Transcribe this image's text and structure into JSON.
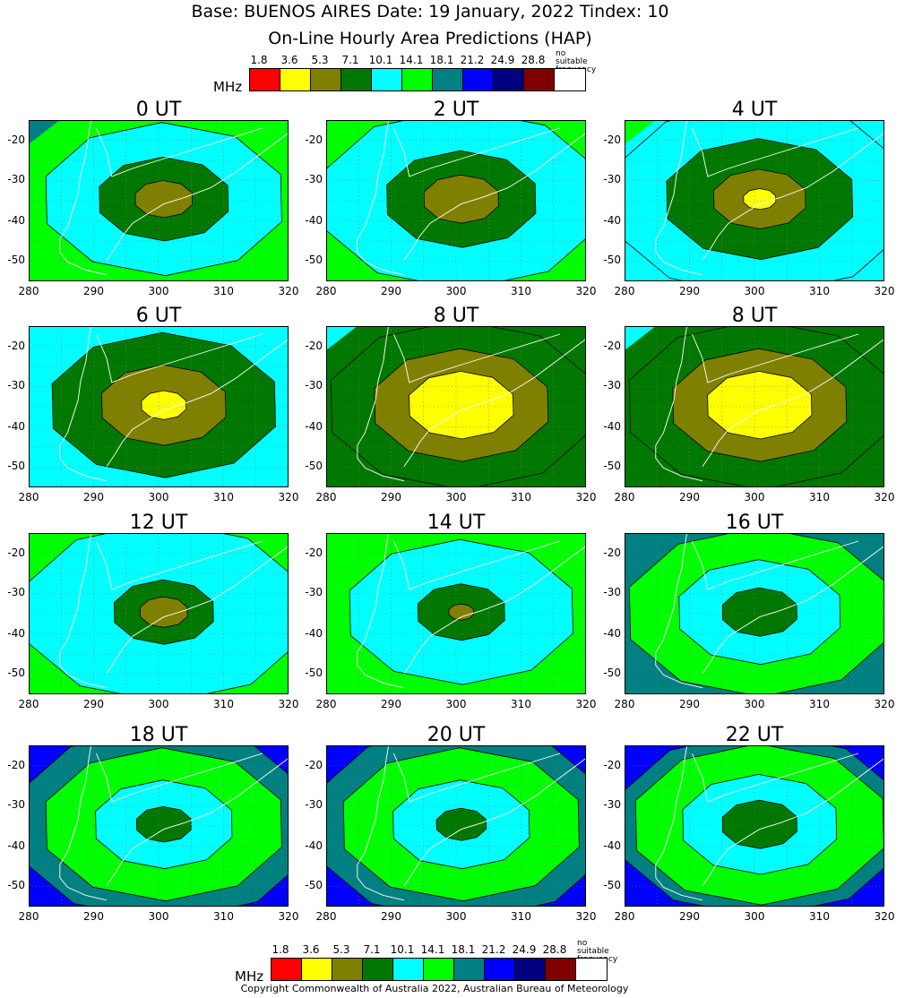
{
  "header": {
    "title": "Base: BUENOS AIRES Date: 19 January, 2022 Tindex: 10",
    "subtitle": "On-Line Hourly Area Predictions (HAP)"
  },
  "colorbar": {
    "unit": "MHz",
    "levels": [
      "1.8",
      "3.6",
      "5.3",
      "7.1",
      "10.1",
      "14.1",
      "18.1",
      "21.2",
      "24.9",
      "28.8"
    ],
    "no_suitable_line1": "no suitable",
    "no_suitable_line2": "frequency",
    "colors": [
      "#ff0000",
      "#ffff00",
      "#808000",
      "#007800",
      "#00ffff",
      "#00ff00",
      "#008080",
      "#0000ff",
      "#000080",
      "#800000",
      "#ffffff"
    ]
  },
  "axes": {
    "x_ticks": [
      "280",
      "290",
      "300",
      "310",
      "320"
    ],
    "y_ticks": [
      "-20",
      "-30",
      "-40",
      "-50"
    ]
  },
  "panels": [
    {
      "label": "0 UT",
      "rings": [
        [
          "#00ff00",
          1.0
        ],
        [
          "#00ffff",
          0.95
        ],
        [
          "#007800",
          0.52
        ],
        [
          "#808000",
          0.23
        ]
      ],
      "corner": "#008080"
    },
    {
      "label": "2 UT",
      "rings": [
        [
          "#00ff00",
          1.0
        ],
        [
          "#00ffff",
          1.12
        ],
        [
          "#007800",
          0.6
        ],
        [
          "#808000",
          0.3
        ]
      ],
      "corner": ""
    },
    {
      "label": "4 UT",
      "rings": [
        [
          "#00ffff",
          1.0
        ],
        [
          "#00ffff",
          1.2
        ],
        [
          "#007800",
          0.75
        ],
        [
          "#808000",
          0.37
        ],
        [
          "#ffff00",
          0.13
        ]
      ],
      "corner": "#00ff00"
    },
    {
      "label": "6 UT",
      "rings": [
        [
          "#00ffff",
          1.0
        ],
        [
          "#007800",
          0.9
        ],
        [
          "#808000",
          0.5
        ],
        [
          "#ffff00",
          0.18
        ]
      ],
      "corner": ""
    },
    {
      "label": "8 UT",
      "rings": [
        [
          "#007800",
          1.0
        ],
        [
          "#007800",
          1.05
        ],
        [
          "#808000",
          0.7
        ],
        [
          "#ffff00",
          0.42
        ]
      ],
      "corner": "#00ffff"
    },
    {
      "label": "8 UT",
      "rings": [
        [
          "#007800",
          1.0
        ],
        [
          "#007800",
          1.05
        ],
        [
          "#808000",
          0.7
        ],
        [
          "#ffff00",
          0.42
        ]
      ],
      "corner": "#00ffff"
    },
    {
      "label": "12 UT",
      "rings": [
        [
          "#00ff00",
          1.0
        ],
        [
          "#00ffff",
          1.12
        ],
        [
          "#007800",
          0.4
        ],
        [
          "#808000",
          0.19
        ]
      ],
      "corner": ""
    },
    {
      "label": "14 UT",
      "rings": [
        [
          "#00ff00",
          1.0
        ],
        [
          "#00ffff",
          0.9
        ],
        [
          "#007800",
          0.35
        ],
        [
          "#808000",
          0.1
        ]
      ],
      "corner": ""
    },
    {
      "label": "16 UT",
      "rings": [
        [
          "#008080",
          1.0
        ],
        [
          "#00ff00",
          1.05
        ],
        [
          "#00ffff",
          0.65
        ],
        [
          "#007800",
          0.3
        ]
      ],
      "corner": "#008080"
    },
    {
      "label": "18 UT",
      "rings": [
        [
          "#0000ff",
          1.0
        ],
        [
          "#008080",
          1.2
        ],
        [
          "#00ff00",
          0.95
        ],
        [
          "#00ffff",
          0.55
        ],
        [
          "#007800",
          0.22
        ]
      ],
      "corner": "#0000ff"
    },
    {
      "label": "20 UT",
      "rings": [
        [
          "#0000ff",
          1.0
        ],
        [
          "#008080",
          1.2
        ],
        [
          "#00ff00",
          0.95
        ],
        [
          "#00ffff",
          0.55
        ],
        [
          "#007800",
          0.2
        ]
      ],
      "corner": "#0000ff"
    },
    {
      "label": "22 UT",
      "rings": [
        [
          "#0000ff",
          1.0
        ],
        [
          "#008080",
          1.15
        ],
        [
          "#00ff00",
          1.0
        ],
        [
          "#00ffff",
          0.62
        ],
        [
          "#007800",
          0.3
        ]
      ],
      "corner": "#0000ff"
    }
  ],
  "footer": {
    "copyright": "Copyright Commonwealth of Australia 2022, Australian Bureau of Meteorology"
  }
}
